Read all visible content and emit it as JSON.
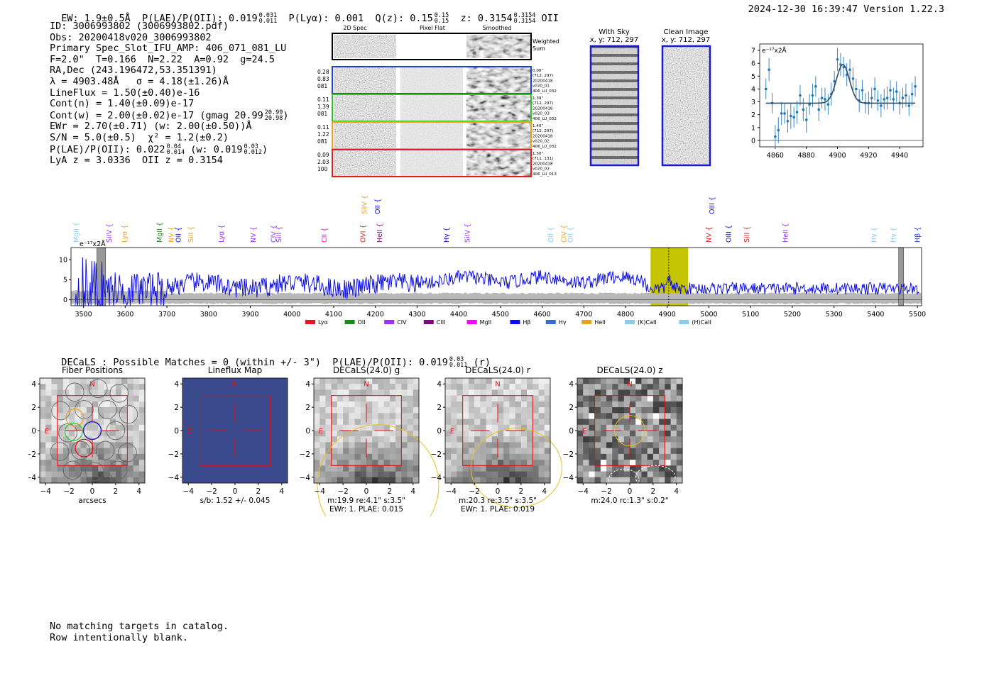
{
  "header": {
    "ew_label": "EW: 1.9±0.5Å",
    "plae_label": "P(LAE)/P(OII): 0.019",
    "plae_hi": "0.031",
    "plae_lo": "0.011",
    "plya_label": "P(Lyα): 0.001",
    "qz_label": "Q(z): 0.15",
    "qz_hi": "0.15",
    "qz_lo": "0.15",
    "z_label": "z: 0.3154",
    "z_hi": "0.3154",
    "z_lo": "0.3154",
    "z_line": "OII",
    "datetime": "2024-12-30 16:39:47",
    "version": "Version 1.22.3"
  },
  "info": {
    "id": "ID: 3006993802 (3006993802.pdf)",
    "obs": "Obs: 20200418v020_3006993802",
    "primary": "Primary Spec_Slot_IFU_AMP: 406_071_081_LU",
    "params": "F=2.0\"  T=0.166  N=2.22  A=0.92  g=24.5",
    "radec": "RA,Dec (243.196472,53.351391)",
    "lambda": "λ = 4903.48Å   σ = 4.18(±1.26)Å",
    "lineflux": "LineFlux = 1.50(±0.40)e-16",
    "cont_n": "Cont(n) = 1.40(±0.09)e-17",
    "cont_w": "Cont(w) = 2.00(±0.02)e-17 (gmag 20.99",
    "gmag_hi": "20.99",
    "gmag_lo": "20.98",
    "ewr": "EWr = 2.70(±0.71) (w: 2.00(±0.50))Å",
    "sn": "S/N = 5.0(±0.5)  χ² = 1.2(±0.2)",
    "plae": "P(LAE)/P(OII): 0.022",
    "plae_hi": "0.04",
    "plae_lo": "0.014",
    "plae_w": "(w: 0.019",
    "plae_w_hi": "0.03",
    "plae_w_lo": "0.012",
    "lyaz": "LyA z = 3.0336  OII z = 0.3154"
  },
  "cutouts": {
    "col_headers": [
      "2D Spec",
      "Pixel Flat",
      "Smoothed"
    ],
    "weighted_sum": [
      "Weighted",
      "Sum"
    ],
    "rows": [
      {
        "left": [
          "0.28",
          "0.83",
          "081"
        ],
        "right": [
          "0.00\"",
          "(712, 297)",
          "20200418",
          "v020_01",
          "406_LU_032"
        ],
        "color": "#1f3fd6"
      },
      {
        "left": [
          "0.11",
          "1.39",
          "081"
        ],
        "right": [
          "1.39\"",
          "(712, 297)",
          "20200418",
          "v020_03",
          "406_LU_032"
        ],
        "color": "#2fbf2f"
      },
      {
        "left": [
          "0.11",
          "1.22",
          "081"
        ],
        "right": [
          "1.40\"",
          "(712, 297)",
          "20200418",
          "v020_02",
          "406_LU_032"
        ],
        "color": "#f0a020"
      },
      {
        "left": [
          "0.09",
          "2.03",
          "100"
        ],
        "right": [
          "1.50\"",
          "(711, 131)",
          "20200418",
          "v020_02",
          "406_LU_013"
        ],
        "color": "#e01f1f"
      }
    ]
  },
  "sky": {
    "with_sky": "With Sky",
    "with_sky_xy": "x, y: 712, 297",
    "clean": "Clean Image",
    "clean_xy": "x, y: 712, 297"
  },
  "zoom_chart": {
    "type": "scatter",
    "unit_label": "e⁻¹⁷x2Å",
    "xlim": [
      4850,
      4955
    ],
    "ylim": [
      -0.5,
      7.5
    ],
    "xticks": [
      4860,
      4880,
      4900,
      4920,
      4940
    ],
    "yticks": [
      0,
      1,
      2,
      3,
      4,
      5,
      6,
      7
    ],
    "continuum": 2.9,
    "peak": 5.9,
    "center": 4903.5,
    "sigma": 4.2,
    "points": [
      [
        4854,
        4.0,
        0.8
      ],
      [
        4856,
        5.5,
        0.9
      ],
      [
        4858,
        2.9,
        0.8
      ],
      [
        4860,
        0.3,
        0.9
      ],
      [
        4862,
        0.8,
        1.0
      ],
      [
        4864,
        2.1,
        0.9
      ],
      [
        4866,
        2.1,
        0.8
      ],
      [
        4868,
        1.5,
        0.9
      ],
      [
        4870,
        1.9,
        1.0
      ],
      [
        4872,
        1.8,
        0.8
      ],
      [
        4874,
        2.2,
        0.9
      ],
      [
        4876,
        3.5,
        0.8
      ],
      [
        4878,
        2.4,
        0.9
      ],
      [
        4880,
        1.6,
        1.0
      ],
      [
        4882,
        2.8,
        0.8
      ],
      [
        4884,
        3.5,
        0.9
      ],
      [
        4886,
        4.2,
        0.8
      ],
      [
        4888,
        2.4,
        0.9
      ],
      [
        4890,
        3.3,
        0.8
      ],
      [
        4892,
        3.2,
        0.9
      ],
      [
        4894,
        2.8,
        0.8
      ],
      [
        4896,
        3.6,
        0.9
      ],
      [
        4898,
        4.6,
        0.8
      ],
      [
        4900,
        6.3,
        0.9
      ],
      [
        4902,
        5.9,
        0.9
      ],
      [
        4904,
        5.7,
        0.8
      ],
      [
        4906,
        5.1,
        0.9
      ],
      [
        4908,
        5.5,
        0.8
      ],
      [
        4910,
        4.8,
        0.9
      ],
      [
        4912,
        4.0,
        0.8
      ],
      [
        4914,
        3.1,
        0.9
      ],
      [
        4916,
        3.9,
        0.8
      ],
      [
        4918,
        2.9,
        0.8
      ],
      [
        4920,
        2.9,
        0.9
      ],
      [
        4922,
        3.3,
        0.8
      ],
      [
        4924,
        4.0,
        0.9
      ],
      [
        4926,
        3.1,
        0.8
      ],
      [
        4928,
        2.7,
        0.9
      ],
      [
        4930,
        3.2,
        0.8
      ],
      [
        4932,
        3.3,
        0.9
      ],
      [
        4934,
        3.9,
        0.8
      ],
      [
        4936,
        3.2,
        0.9
      ],
      [
        4938,
        3.8,
        0.8
      ],
      [
        4940,
        2.9,
        0.9
      ],
      [
        4942,
        3.3,
        0.8
      ],
      [
        4944,
        3.5,
        0.9
      ],
      [
        4946,
        2.7,
        0.8
      ],
      [
        4948,
        3.6,
        0.9
      ],
      [
        4950,
        4.2,
        0.8
      ]
    ]
  },
  "spectrum_chart": {
    "type": "line",
    "unit_label": "e⁻¹⁷x2Å",
    "xlim": [
      3470,
      5510
    ],
    "ylim": [
      -1.5,
      13
    ],
    "xticks": [
      3500,
      3600,
      3700,
      3800,
      3900,
      4000,
      4100,
      4200,
      4300,
      4400,
      4500,
      4600,
      4700,
      4800,
      4900,
      5000,
      5100,
      5200,
      5300,
      5400,
      5500
    ],
    "yticks": [
      0,
      5,
      10
    ],
    "highlight_range": [
      4860,
      4950
    ],
    "marker_wave": 4903.5,
    "gray_bars": [
      [
        3532,
        3553
      ],
      [
        5455,
        5467
      ]
    ],
    "line_labels": [
      {
        "name": "MgII",
        "wave": 3482,
        "color": "#87ceeb",
        "tier": 1
      },
      {
        "name": "SiIV",
        "wave": 3561,
        "color": "#9b30ff",
        "tier": 1
      },
      {
        "name": "Lyα",
        "wave": 3598,
        "color": "#f0a020",
        "tier": 1
      },
      {
        "name": "MgII",
        "wave": 3682,
        "color": "#1a8a1a",
        "tier": 1
      },
      {
        "name": "NV",
        "wave": 3710,
        "color": "#f0a020",
        "tier": 1
      },
      {
        "name": "OII",
        "wave": 3727,
        "color": "#1010d0",
        "tier": 1
      },
      {
        "name": "SiII",
        "wave": 3757,
        "color": "#f0a020",
        "tier": 1
      },
      {
        "name": "Lyα",
        "wave": 3830,
        "color": "#9b30ff",
        "tier": 1
      },
      {
        "name": "NV",
        "wave": 3907,
        "color": "#9b30ff",
        "tier": 1
      },
      {
        "name": "CIV",
        "wave": 3955,
        "color": "#9b30ff",
        "tier": 1
      },
      {
        "name": "SiII",
        "wave": 3968,
        "color": "#9b30ff",
        "tier": 1
      },
      {
        "name": "CII",
        "wave": 4077,
        "color": "#ff00ff",
        "tier": 1
      },
      {
        "name": "OVI",
        "wave": 4170,
        "color": "#e01f1f",
        "tier": 1
      },
      {
        "name": "HeII",
        "wave": 4210,
        "color": "#7a0a7a",
        "tier": 1
      },
      {
        "name": "SiIV",
        "wave": 4173,
        "color": "#f0a020",
        "tier": 2
      },
      {
        "name": "OII",
        "wave": 4205,
        "color": "#1010d0",
        "tier": 2
      },
      {
        "name": "Hγ",
        "wave": 4370,
        "color": "#1010d0",
        "tier": 1
      },
      {
        "name": "SiIV",
        "wave": 4420,
        "color": "#9b30ff",
        "tier": 1
      },
      {
        "name": "OII",
        "wave": 4620,
        "color": "#87ceeb",
        "tier": 1
      },
      {
        "name": "CIV",
        "wave": 4652,
        "color": "#f0a020",
        "tier": 1
      },
      {
        "name": "OII",
        "wave": 4667,
        "color": "#87ceeb",
        "tier": 1
      },
      {
        "name": "NV",
        "wave": 4999,
        "color": "#e01f1f",
        "tier": 1
      },
      {
        "name": "OIII",
        "wave": 5007,
        "color": "#1010d0",
        "tier": 2
      },
      {
        "name": "OIII",
        "wave": 5047,
        "color": "#1010d0",
        "tier": 1
      },
      {
        "name": "SiII",
        "wave": 5090,
        "color": "#e01f1f",
        "tier": 1
      },
      {
        "name": "HeII",
        "wave": 5183,
        "color": "#9b30ff",
        "tier": 1
      },
      {
        "name": "Hγ",
        "wave": 5395,
        "color": "#87ceeb",
        "tier": 1
      },
      {
        "name": "Hγ",
        "wave": 5442,
        "color": "#87ceeb",
        "tier": 1
      },
      {
        "name": "Hβ",
        "wave": 5500,
        "color": "#1f3fd6",
        "tier": 1
      }
    ],
    "legend": [
      {
        "label": "Lyα",
        "color": "#e8141c"
      },
      {
        "label": "OII",
        "color": "#1a8a1a"
      },
      {
        "label": "CIV",
        "color": "#9b30ff"
      },
      {
        "label": "CIII",
        "color": "#7a0a7a"
      },
      {
        "label": "MgII",
        "color": "#ff00ff"
      },
      {
        "label": "Hβ",
        "color": "#0a0aff"
      },
      {
        "label": "Hγ",
        "color": "#3a6ad6"
      },
      {
        "label": "HeII",
        "color": "#f0a020"
      },
      {
        "label": "(K)CaII",
        "color": "#87ceeb"
      },
      {
        "label": "(H)CaII",
        "color": "#87ceeb"
      }
    ]
  },
  "decals_line": "DECaLS : Possible Matches = 0 (within +/- 3\")  P(LAE)/P(OII): 0.019",
  "decals_hi": "0.03",
  "decals_lo": "0.011",
  "decals_band": "(r)",
  "panels": [
    {
      "title": "Fiber Positions",
      "caption1": "arcsecs",
      "caption2": ""
    },
    {
      "title": "Lineflux Map",
      "caption1": "s/b: 1.52 +/- 0.045",
      "caption2": ""
    },
    {
      "title": "DECaLS(24.0) g",
      "caption1": "m:19.9  re:4.1\"  s:3.5\"",
      "caption2": "EWr: 1. PLAE: 0.015"
    },
    {
      "title": "DECaLS(24.0) r",
      "caption1": "m:20.3  re:3.5\"  s:3.5\"",
      "caption2": "EWr: 1. PLAE: 0.019"
    },
    {
      "title": "DECaLS(24.0) z",
      "caption1": "m:24.0 rc:1.3\"  s:0.2\"",
      "caption2": ""
    }
  ],
  "panel_axes": {
    "ticks": [
      -4,
      -2,
      0,
      2,
      4
    ],
    "n_label": "N",
    "e_label": "E"
  },
  "footer": [
    "No matching targets in catalog.",
    "Row intentionally blank."
  ]
}
